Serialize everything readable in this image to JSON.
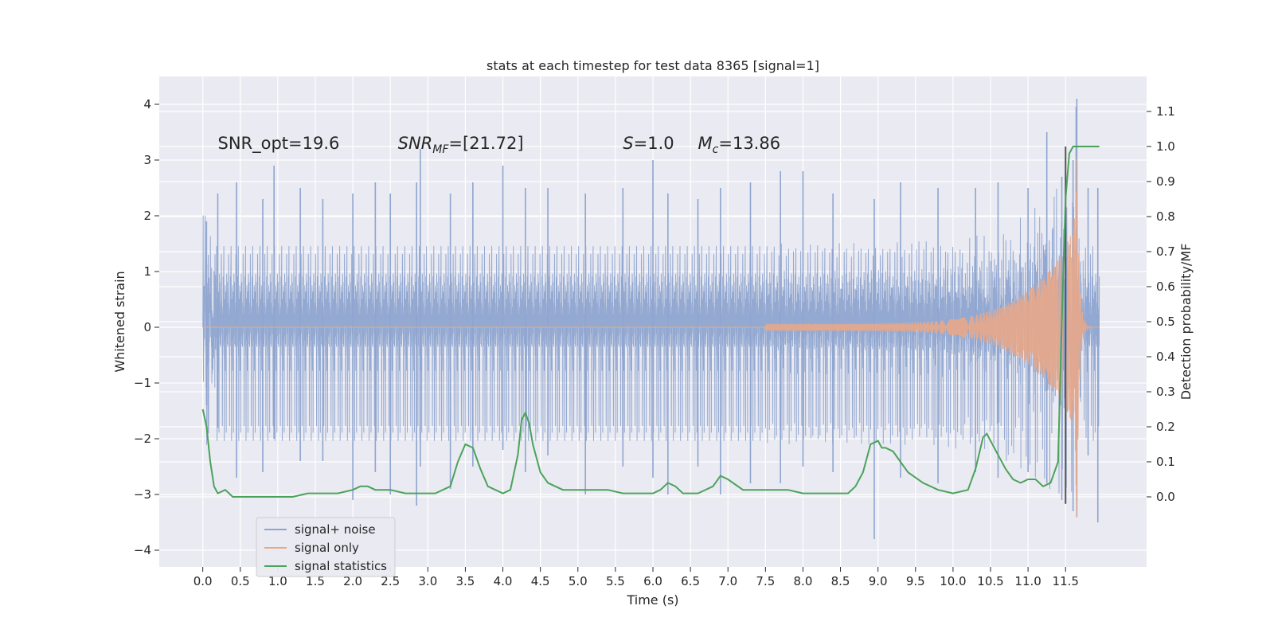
{
  "chart_data": {
    "type": "line",
    "title": "stats at each timestep for test data 8365 [signal=1]",
    "xlabel": "Time (s)",
    "ylabel_left": "Whitened strain",
    "ylabel_right": "Detection probability/MF",
    "xlim": [
      -0.58,
      12.58
    ],
    "ylim_left": [
      -4.3,
      4.5
    ],
    "ylim_right": [
      -0.2,
      1.2
    ],
    "x_ticks": [
      "0.0",
      "0.5",
      "1.0",
      "1.5",
      "2.0",
      "2.5",
      "3.0",
      "3.5",
      "4.0",
      "4.5",
      "5.0",
      "5.5",
      "6.0",
      "6.5",
      "7.0",
      "7.5",
      "8.0",
      "8.5",
      "9.0",
      "9.5",
      "10.0",
      "10.5",
      "11.0",
      "11.5"
    ],
    "x_tick_values": [
      0,
      0.5,
      1,
      1.5,
      2,
      2.5,
      3,
      3.5,
      4,
      4.5,
      5,
      5.5,
      6,
      6.5,
      7,
      7.5,
      8,
      8.5,
      9,
      9.5,
      10,
      10.5,
      11,
      11.5
    ],
    "y_left_ticks": [
      "−4",
      "−3",
      "−2",
      "−1",
      "0",
      "1",
      "2",
      "3",
      "4"
    ],
    "y_left_tick_values": [
      -4,
      -3,
      -2,
      -1,
      0,
      1,
      2,
      3,
      4
    ],
    "y_right_ticks": [
      "0.0",
      "0.1",
      "0.2",
      "0.3",
      "0.4",
      "0.5",
      "0.6",
      "0.7",
      "0.8",
      "0.9",
      "1.0",
      "1.1"
    ],
    "y_right_tick_values": [
      0,
      0.1,
      0.2,
      0.3,
      0.4,
      0.5,
      0.6,
      0.7,
      0.8,
      0.9,
      1.0,
      1.1
    ],
    "grid": true,
    "background": "#eaeaf2",
    "annotations": [
      {
        "id": "snr-opt",
        "text": "SNR_opt=19.6",
        "x": 0.2,
        "y": 3.3
      },
      {
        "id": "snr-mf",
        "text": "SNR_MF=[21.72]",
        "x": 2.6,
        "y": 3.3
      },
      {
        "id": "s-value",
        "text": "S=1.0",
        "x": 5.6,
        "y": 3.3
      },
      {
        "id": "mc-value",
        "text": "M_c=13.86",
        "x": 6.6,
        "y": 3.3
      }
    ],
    "vertical_marker": {
      "x": 11.5,
      "y_range": [
        -0.02,
        1.0
      ],
      "color": "#555555"
    },
    "legend": {
      "placement": "lower-left",
      "entries": [
        {
          "label": "signal+ noise",
          "color": "#8fa5cf"
        },
        {
          "label": "signal only",
          "color": "#e8a788"
        },
        {
          "label": "signal statistics",
          "color": "#4aa35a"
        }
      ]
    },
    "series": [
      {
        "name": "signal+ noise",
        "axis": "left",
        "color": "#8fa5cf",
        "description_range": [
          0.0,
          11.95
        ],
        "envelope_core": 1.35,
        "peak_samples": [
          [
            0.05,
            1.9,
            -1.4
          ],
          [
            0.2,
            2.4,
            -1.8
          ],
          [
            0.45,
            2.6,
            -2.7
          ],
          [
            0.8,
            2.3,
            -2.6
          ],
          [
            0.95,
            2.9,
            -2.0
          ],
          [
            1.3,
            2.5,
            -2.4
          ],
          [
            1.6,
            2.3,
            -2.4
          ],
          [
            2.0,
            2.4,
            -3.1
          ],
          [
            2.3,
            2.6,
            -2.6
          ],
          [
            2.5,
            2.4,
            -3.0
          ],
          [
            2.85,
            2.6,
            -3.2
          ],
          [
            2.9,
            3.2,
            -2.5
          ],
          [
            3.3,
            2.4,
            -2.9
          ],
          [
            3.6,
            2.6,
            -2.5
          ],
          [
            4.0,
            2.9,
            -2.2
          ],
          [
            4.3,
            2.5,
            -2.6
          ],
          [
            4.6,
            2.5,
            -2.3
          ],
          [
            5.1,
            2.4,
            -3.0
          ],
          [
            5.6,
            2.5,
            -2.5
          ],
          [
            6.0,
            3.0,
            -2.7
          ],
          [
            6.2,
            2.4,
            -3.0
          ],
          [
            6.6,
            2.3,
            -2.5
          ],
          [
            6.9,
            2.5,
            -3.0
          ],
          [
            7.3,
            2.6,
            -2.8
          ],
          [
            7.7,
            2.8,
            -2.8
          ],
          [
            8.0,
            2.8,
            -2.5
          ],
          [
            8.4,
            2.4,
            -2.6
          ],
          [
            8.95,
            2.3,
            -3.8
          ],
          [
            9.3,
            2.6,
            -2.7
          ],
          [
            9.8,
            2.5,
            -2.8
          ],
          [
            10.3,
            2.5,
            -2.6
          ],
          [
            10.6,
            2.6,
            -2.7
          ],
          [
            11.0,
            2.5,
            -2.6
          ],
          [
            11.25,
            3.5,
            -2.8
          ],
          [
            11.45,
            2.7,
            -3.1
          ],
          [
            11.6,
            3.0,
            -3.3
          ],
          [
            11.65,
            4.1,
            -3.4
          ],
          [
            11.8,
            2.5,
            -2.3
          ],
          [
            11.93,
            2.5,
            -3.5
          ]
        ]
      },
      {
        "name": "signal only",
        "axis": "left",
        "color": "#e8a788",
        "chirp": {
          "start": 7.5,
          "merger": 11.65,
          "end": 11.95,
          "peak_amplitude": 3.5
        }
      },
      {
        "name": "signal statistics",
        "axis": "right",
        "color": "#4aa35a",
        "x": [
          0.0,
          0.05,
          0.1,
          0.15,
          0.2,
          0.3,
          0.4,
          0.5,
          0.6,
          0.8,
          1.0,
          1.2,
          1.4,
          1.6,
          1.8,
          2.0,
          2.1,
          2.2,
          2.3,
          2.5,
          2.7,
          2.9,
          3.1,
          3.3,
          3.4,
          3.5,
          3.6,
          3.7,
          3.8,
          3.9,
          4.0,
          4.1,
          4.2,
          4.25,
          4.3,
          4.35,
          4.4,
          4.5,
          4.6,
          4.8,
          5.0,
          5.2,
          5.4,
          5.6,
          5.8,
          6.0,
          6.1,
          6.2,
          6.3,
          6.4,
          6.6,
          6.8,
          6.9,
          7.0,
          7.2,
          7.4,
          7.6,
          7.8,
          8.0,
          8.2,
          8.4,
          8.6,
          8.7,
          8.8,
          8.9,
          9.0,
          9.05,
          9.1,
          9.2,
          9.3,
          9.4,
          9.6,
          9.8,
          10.0,
          10.2,
          10.3,
          10.4,
          10.45,
          10.5,
          10.6,
          10.7,
          10.8,
          10.9,
          11.0,
          11.1,
          11.2,
          11.3,
          11.4,
          11.45,
          11.5,
          11.55,
          11.6,
          11.65,
          11.7,
          11.8,
          11.95
        ],
        "values": [
          0.25,
          0.2,
          0.1,
          0.03,
          0.01,
          0.02,
          0.0,
          0.0,
          0.0,
          0.0,
          0.0,
          0.0,
          0.01,
          0.01,
          0.01,
          0.02,
          0.03,
          0.03,
          0.02,
          0.02,
          0.01,
          0.01,
          0.01,
          0.03,
          0.1,
          0.15,
          0.14,
          0.08,
          0.03,
          0.02,
          0.01,
          0.02,
          0.12,
          0.22,
          0.24,
          0.21,
          0.15,
          0.07,
          0.04,
          0.02,
          0.02,
          0.02,
          0.02,
          0.01,
          0.01,
          0.01,
          0.02,
          0.04,
          0.03,
          0.01,
          0.01,
          0.03,
          0.06,
          0.05,
          0.02,
          0.02,
          0.02,
          0.02,
          0.01,
          0.01,
          0.01,
          0.01,
          0.03,
          0.07,
          0.15,
          0.16,
          0.14,
          0.14,
          0.13,
          0.1,
          0.07,
          0.04,
          0.02,
          0.01,
          0.02,
          0.08,
          0.17,
          0.18,
          0.16,
          0.12,
          0.08,
          0.05,
          0.04,
          0.05,
          0.05,
          0.03,
          0.04,
          0.1,
          0.5,
          0.85,
          0.98,
          1.0,
          1.0,
          1.0,
          1.0,
          1.0
        ]
      }
    ]
  }
}
